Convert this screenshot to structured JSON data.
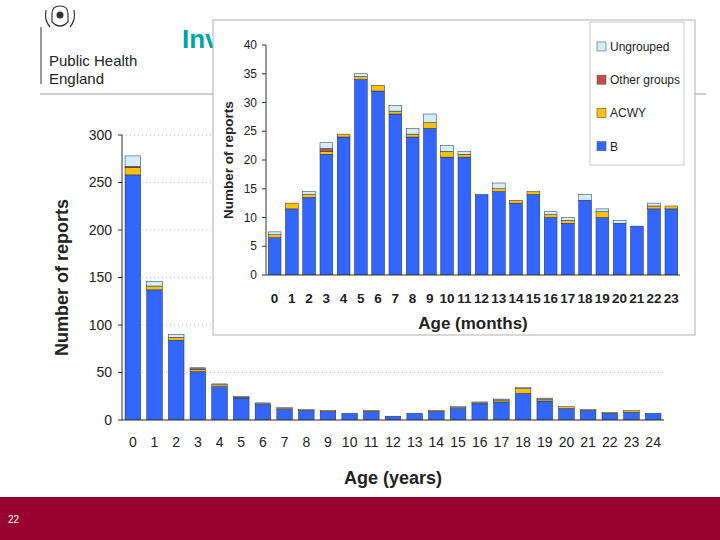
{
  "slide": {
    "title": "Inv",
    "logo": [
      "Public Health",
      "England"
    ],
    "page_number": "22"
  },
  "chart_data": [
    {
      "type": "bar",
      "stacked": true,
      "grid": true,
      "x_label": "Age (years)",
      "y_label": "Number of reports",
      "categories": [
        "0",
        "1",
        "2",
        "3",
        "4",
        "5",
        "6",
        "7",
        "8",
        "9",
        "10",
        "11",
        "12",
        "13",
        "14",
        "15",
        "16",
        "17",
        "18",
        "19",
        "20",
        "21",
        "22",
        "23",
        "24"
      ],
      "ylim": [
        0,
        300
      ],
      "yticks": [
        0,
        50,
        100,
        150,
        200,
        250,
        300
      ],
      "series": [
        {
          "name": "B",
          "color": "#3366ff",
          "values": [
            258,
            137,
            84,
            51,
            35,
            23,
            16,
            11,
            10,
            9,
            7,
            9,
            4,
            7,
            9,
            12,
            17,
            19,
            28,
            20,
            12,
            10,
            7,
            8,
            7
          ]
        },
        {
          "name": "ACWY",
          "color": "#ffc000",
          "values": [
            8,
            4,
            3,
            2,
            2,
            1,
            1,
            1,
            1,
            1,
            0,
            1,
            0,
            0,
            1,
            1,
            1,
            2,
            5,
            2,
            2,
            1,
            1,
            2,
            0
          ]
        },
        {
          "name": "Other groups",
          "color": "#c0504d",
          "values": [
            1,
            0,
            0,
            1,
            0,
            0,
            0,
            0,
            0,
            0,
            0,
            0,
            0,
            0,
            0,
            0,
            0,
            0,
            0,
            0,
            0,
            0,
            0,
            0,
            0
          ]
        },
        {
          "name": "Ungrouped",
          "color": "#d4eef9",
          "values": [
            11,
            5,
            3,
            1,
            1,
            1,
            1,
            1,
            0,
            0,
            0,
            0,
            0,
            0,
            0,
            1,
            1,
            1,
            1,
            1,
            0,
            0,
            0,
            0,
            0
          ]
        }
      ]
    },
    {
      "type": "bar",
      "stacked": true,
      "grid": false,
      "legend": "top-right",
      "x_label": "Age (months)",
      "y_label": "Number of reports",
      "categories": [
        "0",
        "1",
        "2",
        "3",
        "4",
        "5",
        "6",
        "7",
        "8",
        "9",
        "10",
        "11",
        "12",
        "13",
        "14",
        "15",
        "16",
        "17",
        "18",
        "19",
        "20",
        "21",
        "22",
        "23"
      ],
      "ylim": [
        0,
        40
      ],
      "yticks": [
        0,
        5,
        10,
        15,
        20,
        25,
        30,
        35,
        40
      ],
      "series": [
        {
          "name": "B",
          "color": "#3366ff",
          "values": [
            6.5,
            11.5,
            13.5,
            21,
            24,
            34,
            32,
            28,
            24,
            25.5,
            20.5,
            20.5,
            14,
            14.5,
            12.5,
            14,
            10,
            9,
            13,
            10,
            9,
            8.5,
            11.5,
            11.5
          ]
        },
        {
          "name": "ACWY",
          "color": "#ffc000",
          "values": [
            0.5,
            1,
            0.5,
            0.5,
            0.5,
            0.5,
            1,
            0.5,
            0.5,
            1,
            1,
            0.5,
            0,
            0.5,
            0.5,
            0.5,
            0.5,
            0.5,
            0,
            1,
            0,
            0,
            0.5,
            0.5
          ]
        },
        {
          "name": "Other groups",
          "color": "#c0504d",
          "values": [
            0,
            0,
            0,
            0.5,
            0,
            0,
            0,
            0,
            0,
            0,
            0,
            0,
            0,
            0,
            0,
            0,
            0,
            0,
            0,
            0,
            0,
            0,
            0,
            0
          ]
        },
        {
          "name": "Ungrouped",
          "color": "#d4eef9",
          "values": [
            0.5,
            0,
            0.5,
            1,
            0,
            0.5,
            0,
            1,
            1,
            1.5,
            1,
            0.5,
            0,
            1,
            0,
            0,
            0.5,
            0.5,
            1,
            0.5,
            0.5,
            0,
            0.5,
            0
          ]
        }
      ]
    }
  ]
}
